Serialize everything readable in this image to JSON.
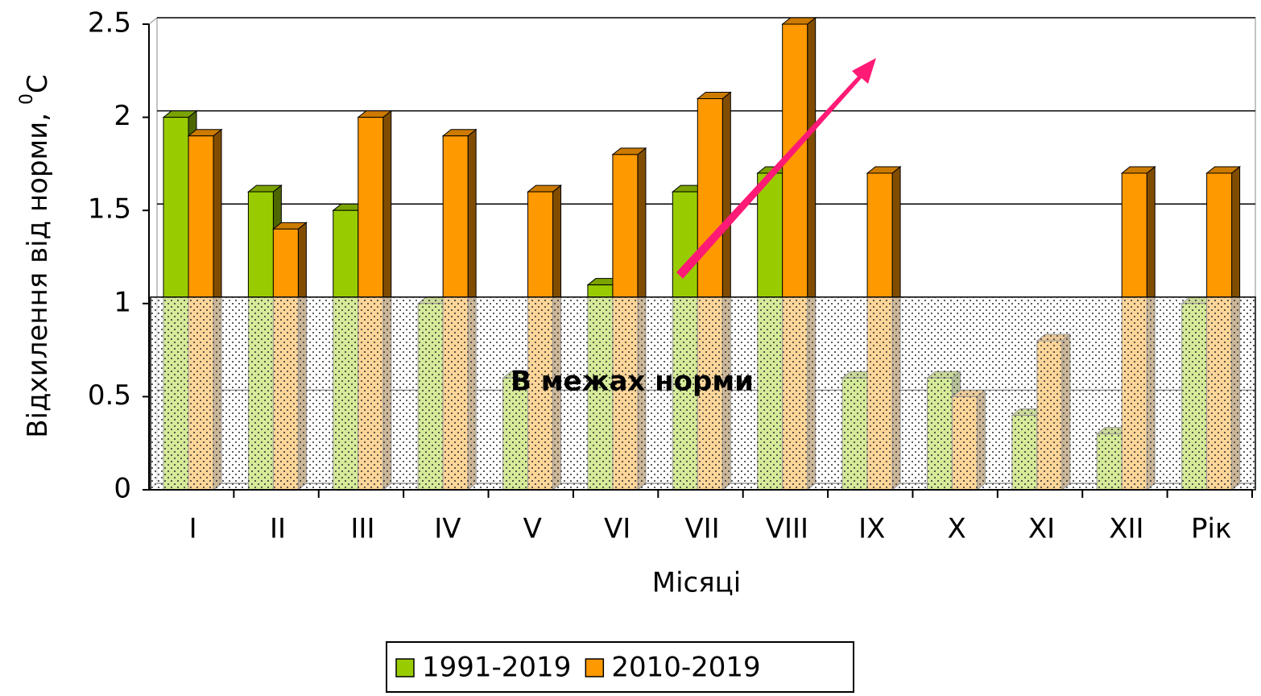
{
  "chart_data": {
    "type": "bar3d",
    "y_label": [
      "Відхилення від норми,",
      "0",
      "C"
    ],
    "x_label": "Місяці",
    "annotation": "В межах норми",
    "norm_band": [
      0,
      1
    ],
    "categories": [
      "I",
      "II",
      "III",
      "IV",
      "V",
      "VI",
      "VII",
      "VIII",
      "IX",
      "X",
      "XI",
      "XII",
      "Рік"
    ],
    "series": [
      {
        "name": "1991-2019",
        "color": "#99cc00",
        "values": [
          2.0,
          1.6,
          1.5,
          1.0,
          0.6,
          1.1,
          1.6,
          1.7,
          0.6,
          0.6,
          0.4,
          0.3,
          1.0
        ]
      },
      {
        "name": "2010-2019",
        "color": "#ff9900",
        "values": [
          1.9,
          1.4,
          2.0,
          1.9,
          1.6,
          1.8,
          2.1,
          2.5,
          1.7,
          0.5,
          0.8,
          1.7,
          1.7
        ]
      }
    ],
    "ylim": [
      0,
      2.5
    ],
    "yticks": [
      0,
      0.5,
      1,
      1.5,
      2,
      2.5
    ],
    "grid": true,
    "legend": "bottom"
  }
}
